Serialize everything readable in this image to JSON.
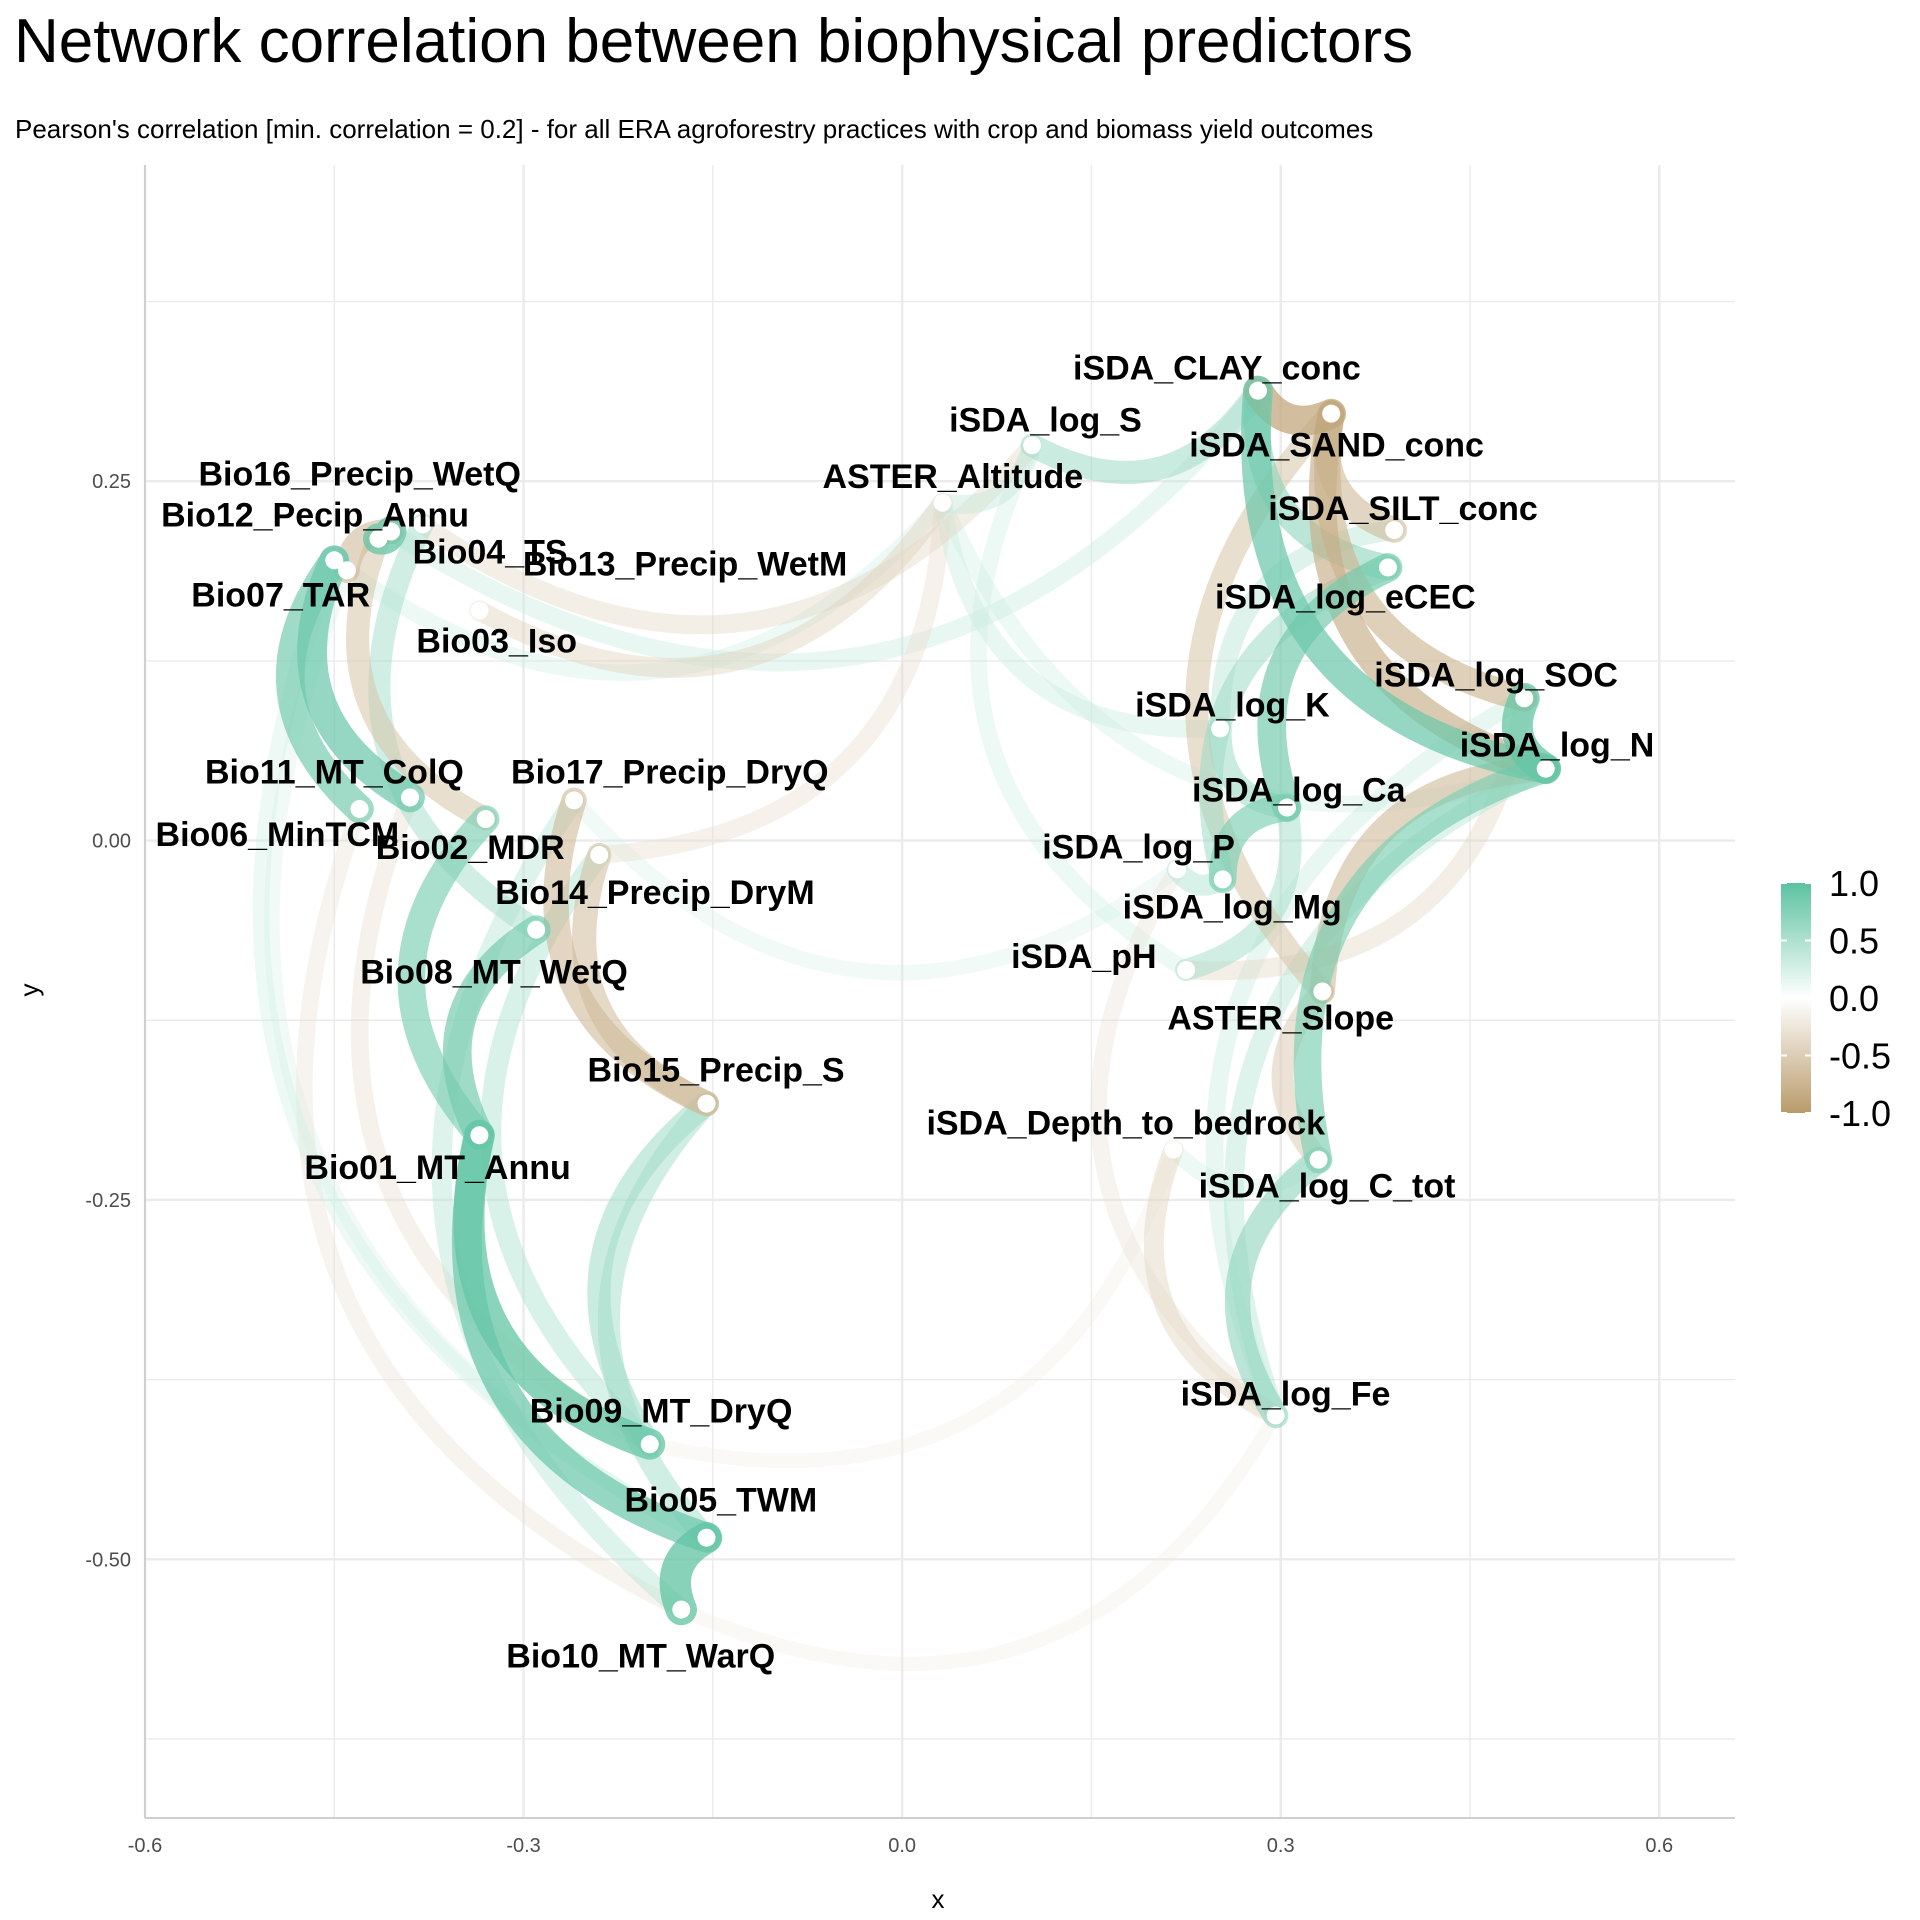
{
  "chart_data": {
    "type": "network",
    "title": "Network correlation between biophysical predictors",
    "subtitle": "Pearson's correlation [min. correlation = 0.2] - for all ERA agroforestry practices with crop and biomass yield outcomes",
    "xlabel": "x",
    "ylabel": "y",
    "xlim": [
      -0.6,
      0.66
    ],
    "ylim": [
      -0.68,
      0.47
    ],
    "x_ticks": [
      -0.6,
      -0.3,
      0.0,
      0.3,
      0.6
    ],
    "x_tick_labels": [
      "-0.6",
      "-0.3",
      "0.0",
      "0.3",
      "0.6"
    ],
    "y_ticks": [
      -0.5,
      -0.25,
      0.0,
      0.25
    ],
    "y_tick_labels": [
      "-0.50",
      "-0.25",
      "0.00",
      "0.25"
    ],
    "grid": true,
    "legend": {
      "position": "right",
      "title": "",
      "colors": {
        "high": "#5cc2a0",
        "mid": "#ffffff",
        "low": "#b99b6b"
      },
      "ticks": [
        1.0,
        0.5,
        0.0,
        -0.5,
        -1.0
      ],
      "tick_labels": [
        "1.0",
        "0.5",
        "0.0",
        "-0.5",
        "-1.0"
      ]
    },
    "nodes": [
      {
        "id": "Bio16_Precip_WetQ",
        "label": "Bio16_Precip_WetQ",
        "x": -0.415,
        "y": 0.21
      },
      {
        "id": "Bio12_Pecip_Annu",
        "label": "Bio12_Pecip_Annu",
        "x": -0.405,
        "y": 0.215
      },
      {
        "id": "Bio04_TS",
        "label": "Bio04_TS",
        "x": -0.38,
        "y": 0.22
      },
      {
        "id": "Bio07_TAR",
        "label": "Bio07_TAR",
        "x": -0.45,
        "y": 0.195
      },
      {
        "id": "Bio03_Iso",
        "label": "Bio03_Iso",
        "x": -0.335,
        "y": 0.16
      },
      {
        "id": "Bio13_Precip_WetM",
        "label": "Bio13_Precip_WetM",
        "x": -0.44,
        "y": 0.188
      },
      {
        "id": "Bio11_MT_ColQ",
        "label": "Bio11_MT_ColQ",
        "x": -0.39,
        "y": 0.03
      },
      {
        "id": "Bio06_MinTCM",
        "label": "Bio06_MinTCM",
        "x": -0.43,
        "y": 0.022
      },
      {
        "id": "Bio02_MDR",
        "label": "Bio02_MDR",
        "x": -0.33,
        "y": 0.015
      },
      {
        "id": "Bio17_Precip_DryQ",
        "label": "Bio17_Precip_DryQ",
        "x": -0.26,
        "y": 0.028
      },
      {
        "id": "Bio14_Precip_DryM",
        "label": "Bio14_Precip_DryM",
        "x": -0.24,
        "y": -0.01
      },
      {
        "id": "Bio08_MT_WetQ",
        "label": "Bio08_MT_WetQ",
        "x": -0.29,
        "y": -0.062
      },
      {
        "id": "Bio15_Precip_S",
        "label": "Bio15_Precip_S",
        "x": -0.155,
        "y": -0.183
      },
      {
        "id": "Bio01_MT_Annu",
        "label": "Bio01_MT_Annu",
        "x": -0.335,
        "y": -0.205
      },
      {
        "id": "Bio09_MT_DryQ",
        "label": "Bio09_MT_DryQ",
        "x": -0.2,
        "y": -0.42
      },
      {
        "id": "Bio05_TWM",
        "label": "Bio05_TWM",
        "x": -0.155,
        "y": -0.485
      },
      {
        "id": "Bio10_MT_WarQ",
        "label": "Bio10_MT_WarQ",
        "x": -0.175,
        "y": -0.535
      },
      {
        "id": "ASTER_Altitude",
        "label": "ASTER_Altitude",
        "x": 0.032,
        "y": 0.235
      },
      {
        "id": "iSDA_log_S",
        "label": "iSDA_log_S",
        "x": 0.103,
        "y": 0.275
      },
      {
        "id": "iSDA_CLAY_conc",
        "label": "iSDA_CLAY_conc",
        "x": 0.282,
        "y": 0.313
      },
      {
        "id": "iSDA_SAND_conc",
        "label": "iSDA_SAND_conc",
        "x": 0.34,
        "y": 0.297
      },
      {
        "id": "iSDA_SILT_conc",
        "label": "iSDA_SILT_conc",
        "x": 0.39,
        "y": 0.216
      },
      {
        "id": "iSDA_log_eCEC",
        "label": "iSDA_log_eCEC",
        "x": 0.385,
        "y": 0.19
      },
      {
        "id": "iSDA_log_SOC",
        "label": "iSDA_log_SOC",
        "x": 0.493,
        "y": 0.099
      },
      {
        "id": "iSDA_log_N",
        "label": "iSDA_log_N",
        "x": 0.51,
        "y": 0.05
      },
      {
        "id": "iSDA_log_K",
        "label": "iSDA_log_K",
        "x": 0.252,
        "y": 0.078
      },
      {
        "id": "iSDA_log_Ca",
        "label": "iSDA_log_Ca",
        "x": 0.305,
        "y": 0.023
      },
      {
        "id": "iSDA_log_P",
        "label": "iSDA_log_P",
        "x": 0.218,
        "y": -0.02
      },
      {
        "id": "iSDA_log_Mg",
        "label": "iSDA_log_Mg",
        "x": 0.254,
        "y": -0.027
      },
      {
        "id": "iSDA_pH",
        "label": "iSDA_pH",
        "x": 0.225,
        "y": -0.09
      },
      {
        "id": "ASTER_Slope",
        "label": "ASTER_Slope",
        "x": 0.333,
        "y": -0.105
      },
      {
        "id": "iSDA_Depth_to_bedrock",
        "label": "iSDA_Depth_to_bedrock",
        "x": 0.215,
        "y": -0.215
      },
      {
        "id": "iSDA_log_C_tot",
        "label": "iSDA_log_C_tot",
        "x": 0.33,
        "y": -0.222
      },
      {
        "id": "iSDA_log_Fe",
        "label": "iSDA_log_Fe",
        "x": 0.296,
        "y": -0.4
      }
    ],
    "edges": [
      {
        "from": "Bio07_TAR",
        "to": "Bio11_MT_ColQ",
        "r": 0.9
      },
      {
        "from": "Bio07_TAR",
        "to": "Bio06_MinTCM",
        "r": 0.85
      },
      {
        "from": "Bio16_Precip_WetQ",
        "to": "Bio12_Pecip_Annu",
        "r": 0.95
      },
      {
        "from": "Bio12_Pecip_Annu",
        "to": "Bio13_Precip_WetM",
        "r": -0.7
      },
      {
        "from": "Bio16_Precip_WetQ",
        "to": "Bio02_MDR",
        "r": -0.6
      },
      {
        "from": "Bio04_TS",
        "to": "Bio08_MT_WetQ",
        "r": 0.55
      },
      {
        "from": "Bio17_Precip_DryQ",
        "to": "Bio15_Precip_S",
        "r": -0.7
      },
      {
        "from": "Bio14_Precip_DryM",
        "to": "Bio15_Precip_S",
        "r": -0.65
      },
      {
        "from": "Bio08_MT_WetQ",
        "to": "Bio01_MT_Annu",
        "r": 0.85
      },
      {
        "from": "Bio02_MDR",
        "to": "Bio01_MT_Annu",
        "r": 0.8
      },
      {
        "from": "Bio01_MT_Annu",
        "to": "Bio09_MT_DryQ",
        "r": 0.95
      },
      {
        "from": "Bio01_MT_Annu",
        "to": "Bio05_TWM",
        "r": 0.9
      },
      {
        "from": "Bio05_TWM",
        "to": "Bio10_MT_WarQ",
        "r": 0.97
      },
      {
        "from": "Bio15_Precip_S",
        "to": "Bio09_MT_DryQ",
        "r": 0.6
      },
      {
        "from": "Bio15_Precip_S",
        "to": "Bio05_TWM",
        "r": 0.55
      },
      {
        "from": "Bio17_Precip_DryQ",
        "to": "Bio10_MT_WarQ",
        "r": 0.45
      },
      {
        "from": "Bio14_Precip_DryM",
        "to": "Bio09_MT_DryQ",
        "r": 0.5
      },
      {
        "from": "Bio06_MinTCM",
        "to": "Bio10_MT_WarQ",
        "r": -0.3
      },
      {
        "from": "Bio11_MT_ColQ",
        "to": "Bio09_MT_DryQ",
        "r": -0.35
      },
      {
        "from": "Bio07_TAR",
        "to": "Bio05_TWM",
        "r": 0.3
      },
      {
        "from": "Bio13_Precip_WetM",
        "to": "Bio05_TWM",
        "r": 0.25
      },
      {
        "from": "Bio03_Iso",
        "to": "ASTER_Altitude",
        "r": -0.45
      },
      {
        "from": "Bio04_TS",
        "to": "iSDA_log_S",
        "r": -0.4
      },
      {
        "from": "Bio12_Pecip_Annu",
        "to": "iSDA_CLAY_conc",
        "r": 0.35
      },
      {
        "from": "Bio13_Precip_WetM",
        "to": "ASTER_Altitude",
        "r": 0.3
      },
      {
        "from": "Bio14_Precip_DryM",
        "to": "ASTER_Altitude",
        "r": -0.35
      },
      {
        "from": "Bio17_Precip_DryQ",
        "to": "iSDA_log_P",
        "r": 0.25
      },
      {
        "from": "Bio10_MT_WarQ",
        "to": "iSDA_log_Fe",
        "r": -0.2
      },
      {
        "from": "Bio09_MT_DryQ",
        "to": "iSDA_Depth_to_bedrock",
        "r": -0.2
      },
      {
        "from": "iSDA_log_S",
        "to": "iSDA_CLAY_conc",
        "r": 0.6
      },
      {
        "from": "ASTER_Altitude",
        "to": "iSDA_log_S",
        "r": 0.4
      },
      {
        "from": "iSDA_CLAY_conc",
        "to": "iSDA_SAND_conc",
        "r": -0.9
      },
      {
        "from": "iSDA_SAND_conc",
        "to": "iSDA_SILT_conc",
        "r": -0.7
      },
      {
        "from": "iSDA_CLAY_conc",
        "to": "iSDA_log_eCEC",
        "r": 0.7
      },
      {
        "from": "iSDA_SAND_conc",
        "to": "iSDA_log_SOC",
        "r": -0.75
      },
      {
        "from": "iSDA_SAND_conc",
        "to": "iSDA_log_N",
        "r": -0.8
      },
      {
        "from": "iSDA_log_SOC",
        "to": "iSDA_log_N",
        "r": 0.95
      },
      {
        "from": "iSDA_log_N",
        "to": "ASTER_Slope",
        "r": -0.7
      },
      {
        "from": "iSDA_CLAY_conc",
        "to": "iSDA_log_N",
        "r": 0.9
      },
      {
        "from": "iSDA_log_eCEC",
        "to": "iSDA_log_Ca",
        "r": 0.85
      },
      {
        "from": "iSDA_log_K",
        "to": "iSDA_log_Ca",
        "r": 0.6
      },
      {
        "from": "iSDA_log_Ca",
        "to": "iSDA_log_Mg",
        "r": 0.8
      },
      {
        "from": "iSDA_log_P",
        "to": "iSDA_log_Mg",
        "r": 0.5
      },
      {
        "from": "iSDA_pH",
        "to": "iSDA_log_Ca",
        "r": 0.55
      },
      {
        "from": "iSDA_pH",
        "to": "iSDA_log_SOC",
        "r": -0.4
      },
      {
        "from": "iSDA_SILT_conc",
        "to": "iSDA_log_K",
        "r": 0.45
      },
      {
        "from": "iSDA_SAND_conc",
        "to": "ASTER_Slope",
        "r": -0.6
      },
      {
        "from": "ASTER_Slope",
        "to": "iSDA_log_C_tot",
        "r": -0.55
      },
      {
        "from": "iSDA_log_C_tot",
        "to": "iSDA_log_Fe",
        "r": 0.7
      },
      {
        "from": "iSDA_Depth_to_bedrock",
        "to": "iSDA_log_Fe",
        "r": -0.45
      },
      {
        "from": "iSDA_log_N",
        "to": "iSDA_log_Fe",
        "r": 0.45
      },
      {
        "from": "iSDA_log_N",
        "to": "iSDA_log_C_tot",
        "r": 0.8
      },
      {
        "from": "iSDA_log_SOC",
        "to": "iSDA_log_Fe",
        "r": 0.35
      },
      {
        "from": "ASTER_Altitude",
        "to": "iSDA_log_K",
        "r": 0.35
      },
      {
        "from": "iSDA_log_S",
        "to": "iSDA_pH",
        "r": 0.3
      },
      {
        "from": "ASTER_Altitude",
        "to": "iSDA_log_N",
        "r": 0.3
      },
      {
        "from": "iSDA_Depth_to_bedrock",
        "to": "iSDA_log_C_tot",
        "r": 0.3
      },
      {
        "from": "iSDA_log_P",
        "to": "iSDA_log_Fe",
        "r": -0.3
      },
      {
        "from": "iSDA_log_eCEC",
        "to": "iSDA_log_Mg",
        "r": 0.6
      }
    ]
  }
}
